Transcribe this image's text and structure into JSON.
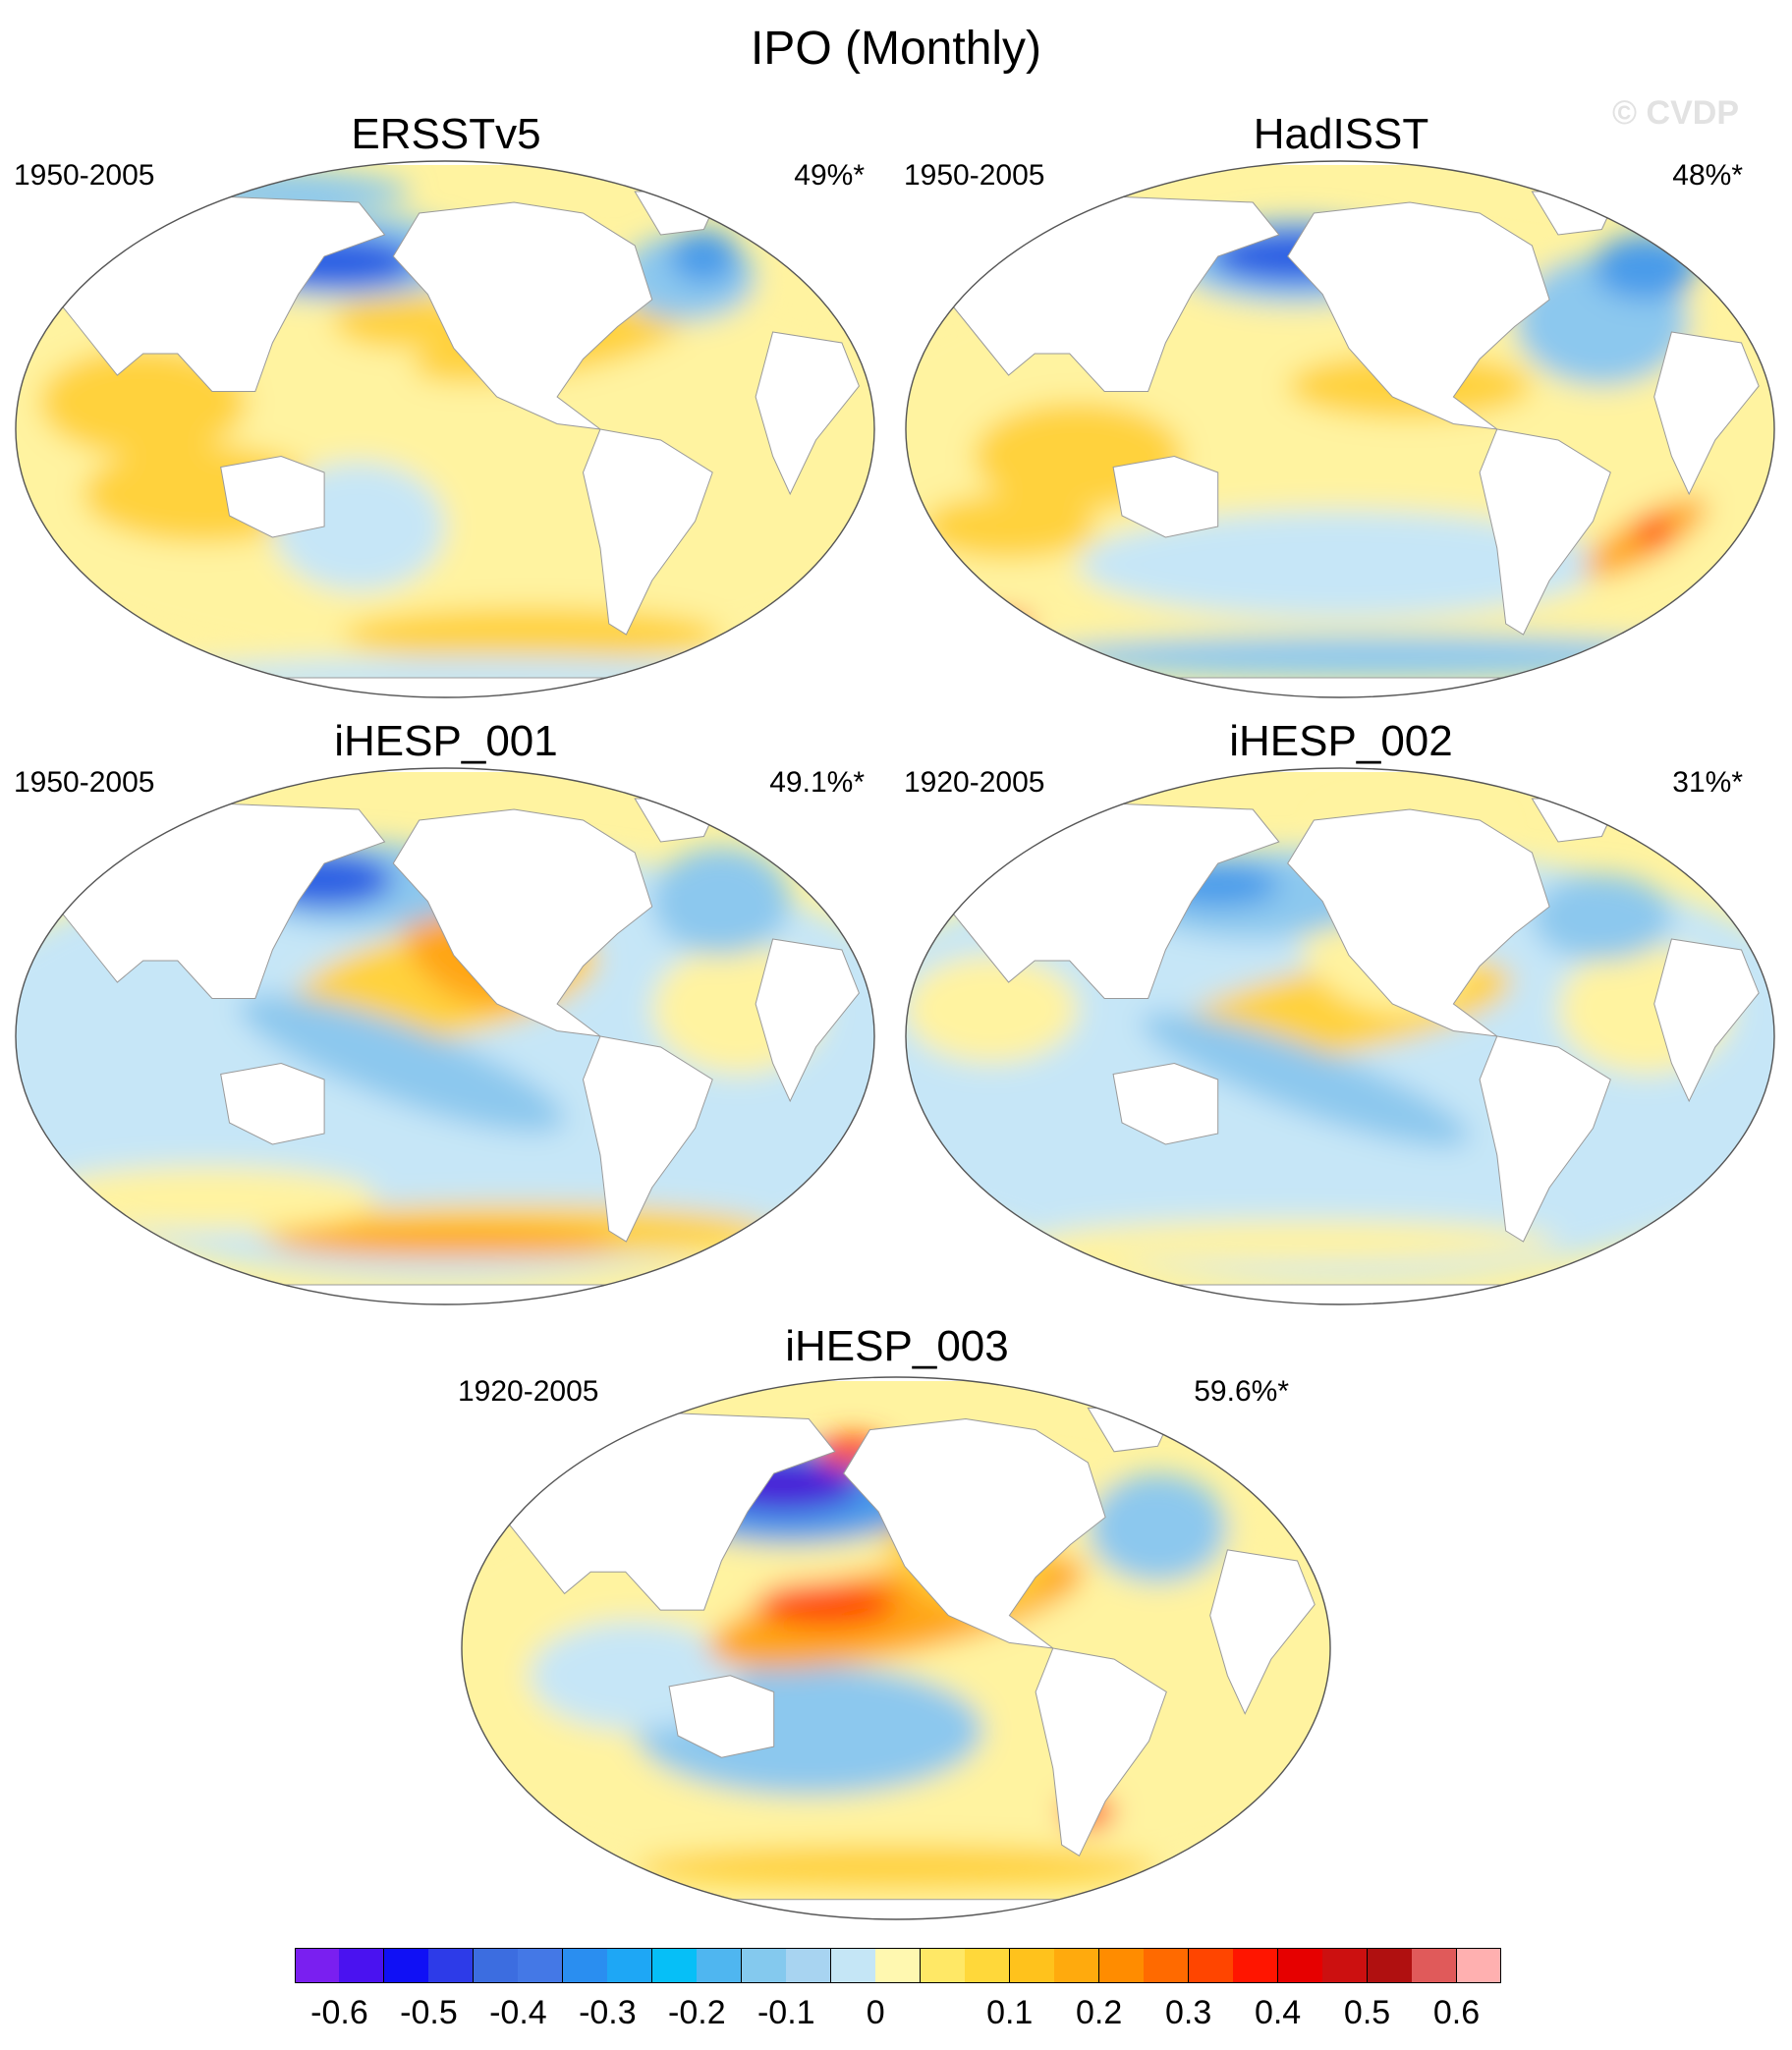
{
  "figure": {
    "title": "IPO (Monthly)",
    "watermark": "© CVDP"
  },
  "panels": [
    {
      "id": "ersst",
      "name": "ERSSTv5",
      "period": "1950-2005",
      "pct": "49%*"
    },
    {
      "id": "hadisst",
      "name": "HadISST",
      "period": "1950-2005",
      "pct": "48%*"
    },
    {
      "id": "ihesp1",
      "name": "iHESP_001",
      "period": "1950-2005",
      "pct": "49.1%*"
    },
    {
      "id": "ihesp2",
      "name": "iHESP_002",
      "period": "1920-2005",
      "pct": "31%*"
    },
    {
      "id": "ihesp3",
      "name": "iHESP_003",
      "period": "1920-2005",
      "pct": "59.6%*"
    }
  ],
  "colorbar": {
    "colors": [
      "#7a1ff0",
      "#4a12f0",
      "#1010f5",
      "#2d3be8",
      "#3c6de0",
      "#4478e6",
      "#2a8ef0",
      "#1ea7f5",
      "#06bff7",
      "#4fb6f0",
      "#84c9ee",
      "#a8d4f1",
      "#c5e6f6",
      "#fff8b0",
      "#ffe866",
      "#ffd83a",
      "#ffc21c",
      "#ffaa0d",
      "#ff8c00",
      "#ff6a00",
      "#ff4500",
      "#ff1500",
      "#e60000",
      "#cc1010",
      "#b01010",
      "#e05a5a",
      "#ffb0b0"
    ],
    "tick_labels": [
      "-0.6",
      "-0.5",
      "-0.4",
      "-0.3",
      "-0.2",
      "-0.1",
      "0",
      "0.1",
      "0.2",
      "0.3",
      "0.4",
      "0.5",
      "0.6"
    ]
  },
  "colors": {
    "land": "#ffffff",
    "neutral_warm": "#fff3a0",
    "warm": "#ffd23c",
    "warm_strong": "#ffa514",
    "hot": "#ff4a00",
    "neutral_cool": "#c6e6f7",
    "cool": "#8cc8ee",
    "cool_strong": "#4a9bea",
    "cold": "#2a5fe3",
    "coldest": "#4a1bd8"
  }
}
